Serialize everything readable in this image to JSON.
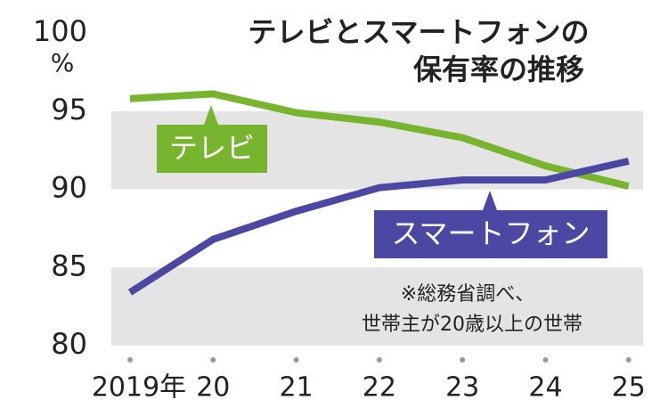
{
  "chart_data": {
    "type": "line",
    "title": [
      "テレビとスマートフォンの",
      "保有率の推移"
    ],
    "y_unit": "%",
    "categories": [
      "2019年",
      "20",
      "21",
      "22",
      "23",
      "24",
      "25"
    ],
    "series": [
      {
        "name": "テレビ",
        "color": "#77b52f",
        "values": [
          95.8,
          96.1,
          94.9,
          94.3,
          93.3,
          91.5,
          90.2
        ]
      },
      {
        "name": "スマートフォン",
        "color": "#4a48a3",
        "values": [
          83.4,
          86.8,
          88.6,
          90.1,
          90.6,
          90.6,
          91.8
        ]
      }
    ],
    "ylim": [
      80,
      100
    ],
    "yticks": [
      80,
      85,
      90,
      95,
      100
    ],
    "note": [
      "※総務省調べ、",
      "世帯主が20歳以上の世帯"
    ]
  }
}
